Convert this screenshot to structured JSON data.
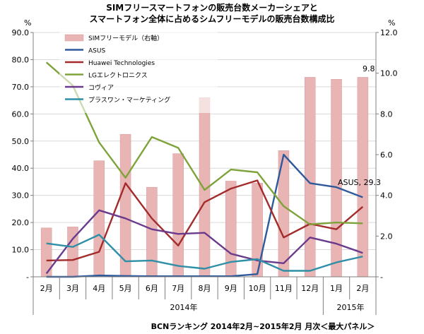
{
  "chart_data": {
    "type": "bar+line",
    "title": "SIMフリースマートフォンの販売台数メーカーシェアと",
    "subtitle": "スマートフォン全体に占めるシムフリーモデルの販売台数構成比",
    "categories": [
      "2月",
      "3月",
      "4月",
      "5月",
      "6月",
      "7月",
      "8月",
      "9月",
      "10月",
      "11月",
      "12月",
      "1月",
      "2月"
    ],
    "year_labels": [
      "2014年",
      "2015年"
    ],
    "y_left": {
      "unit": "%",
      "min": 0,
      "max": 90,
      "step": 10,
      "ticks": [
        "-",
        "10.0",
        "20.0",
        "30.0",
        "40.0",
        "50.0",
        "60.0",
        "70.0",
        "80.0",
        "90.0"
      ]
    },
    "y_right": {
      "unit": "%",
      "min": 0,
      "max": 12,
      "step": 2,
      "ticks": [
        "-",
        "2.0",
        "4.0",
        "6.0",
        "8.0",
        "10.0",
        "12.0"
      ]
    },
    "bars": {
      "name": "SIMフリーモデル（右軸）",
      "color": "#e8b4b4",
      "values": [
        2.4,
        2.45,
        5.7,
        7.0,
        4.4,
        6.05,
        8.8,
        4.7,
        4.6,
        6.2,
        9.8,
        9.7,
        9.8
      ]
    },
    "series": [
      {
        "name": "ASUS",
        "color": "#2e5a9c",
        "values": [
          0,
          0,
          0.5,
          0.3,
          0.2,
          0.2,
          0.2,
          0.2,
          1,
          45,
          34.5,
          33,
          29.3
        ]
      },
      {
        "name": "Huawei Technologies",
        "color": "#a32b2b",
        "values": [
          6,
          6.2,
          9.2,
          34.5,
          21.5,
          11.5,
          27.5,
          32.5,
          35.5,
          14.5,
          19.5,
          17.5,
          25.8
        ]
      },
      {
        "name": "LGエレクトロニクス",
        "color": "#7ea33a",
        "values": [
          79,
          70.5,
          49.5,
          36.5,
          51.5,
          47.5,
          32,
          39.5,
          38.5,
          26,
          19.3,
          20,
          19.7
        ]
      },
      {
        "name": "コヴィア",
        "color": "#6a3a8c",
        "values": [
          1.2,
          14,
          24.5,
          21.5,
          17.5,
          15.8,
          16.2,
          8.5,
          6,
          5,
          14.5,
          12.2,
          8.8
        ]
      },
      {
        "name": "プラスワン・マーケティング",
        "color": "#2e8fa6",
        "values": [
          12.3,
          11,
          15.5,
          5.7,
          6,
          4,
          3,
          5.5,
          6.5,
          2.2,
          2.2,
          5.3,
          7.5
        ]
      }
    ],
    "annotations": {
      "bar_last": "9.8",
      "asus_last": "ASUS,  29.3"
    },
    "footer": "BCNランキング 2014年2月~2015年2月 月次＜最大パネル＞"
  }
}
